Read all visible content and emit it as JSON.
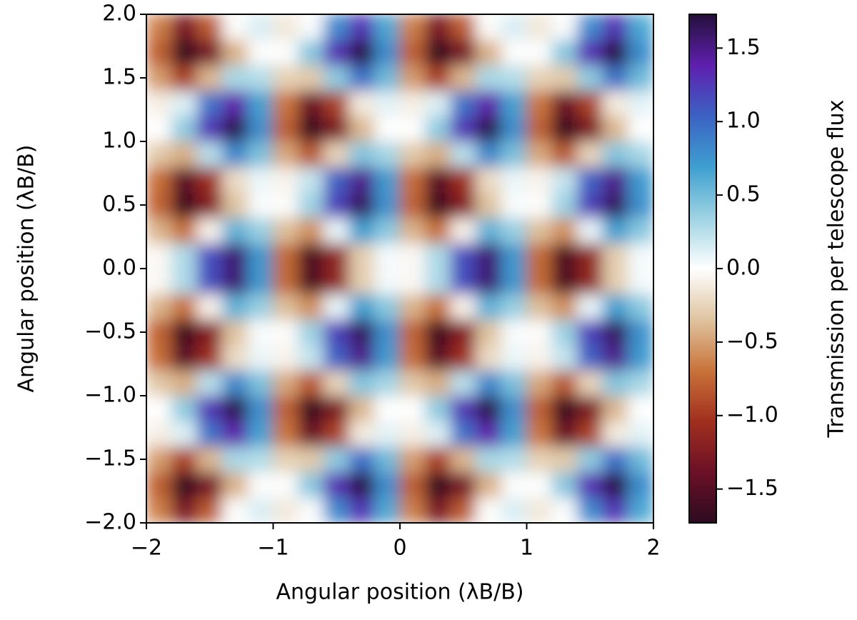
{
  "chart_data": {
    "type": "heatmap",
    "xlabel": "Angular position (λB/B)",
    "ylabel": "Angular position (λB/B)",
    "x": [
      -1.9,
      -1.7,
      -1.5,
      -1.3,
      -1.1,
      -0.9,
      -0.7,
      -0.5,
      -0.3,
      -0.1,
      0.1,
      0.3,
      0.5,
      0.7,
      0.9,
      1.1,
      1.3,
      1.5,
      1.7,
      1.9
    ],
    "y": [
      -1.9,
      -1.7,
      -1.5,
      -1.3,
      -1.1,
      -0.9,
      -0.7,
      -0.5,
      -0.3,
      -0.1,
      0.1,
      0.3,
      0.5,
      0.7,
      0.9,
      1.1,
      1.3,
      1.5,
      1.7,
      1.9
    ],
    "z": [
      [
        -0.64,
        -1.29,
        -0.81,
        -0.02,
        0.14,
        -0.14,
        0.02,
        0.81,
        1.29,
        0.64,
        -0.64,
        -1.29,
        -0.81,
        -0.02,
        0.14,
        -0.14,
        0.02,
        0.81,
        1.29,
        0.64
      ],
      [
        -0.8,
        -1.7,
        -1.31,
        -0.43,
        -0.01,
        0.01,
        0.43,
        1.31,
        1.7,
        0.8,
        -0.8,
        -1.7,
        -1.31,
        -0.43,
        -0.01,
        0.01,
        0.43,
        1.31,
        1.7,
        0.8
      ],
      [
        -0.52,
        -0.96,
        -0.4,
        0.31,
        0.27,
        -0.27,
        -0.31,
        0.4,
        0.96,
        0.52,
        -0.52,
        -0.96,
        -0.4,
        0.31,
        0.27,
        -0.27,
        -0.31,
        0.4,
        0.96,
        0.52
      ],
      [
        -0.1,
        0.12,
        0.94,
        1.39,
        0.68,
        -0.68,
        -1.39,
        -0.94,
        -0.12,
        0.1,
        -0.1,
        0.12,
        0.94,
        1.39,
        0.68,
        -0.68,
        -1.39,
        -0.94,
        -0.12,
        0.1
      ],
      [
        0,
        0.4,
        1.27,
        1.67,
        0.79,
        -0.79,
        -1.67,
        -1.27,
        -0.4,
        0,
        0,
        0.4,
        1.27,
        1.67,
        0.79,
        -0.79,
        -1.67,
        -1.27,
        -0.4,
        0
      ],
      [
        -0.32,
        -0.44,
        0.25,
        0.83,
        0.47,
        -0.47,
        -0.83,
        -0.25,
        0.44,
        0.32,
        -0.32,
        -0.44,
        0.25,
        0.83,
        0.47,
        -0.47,
        -0.83,
        -0.25,
        0.44,
        0.32
      ],
      [
        -0.72,
        -1.48,
        -1.05,
        -0.21,
        0.07,
        -0.07,
        0.21,
        1.05,
        1.48,
        0.72,
        -0.72,
        -1.48,
        -1.05,
        -0.21,
        0.07,
        -0.07,
        0.21,
        1.05,
        1.48,
        0.72
      ],
      [
        -0.77,
        -1.62,
        -1.22,
        -0.35,
        0.02,
        -0.02,
        0.35,
        1.22,
        1.62,
        0.77,
        -0.77,
        -1.62,
        -1.22,
        -0.35,
        0.02,
        -0.02,
        0.35,
        1.22,
        1.62,
        0.77
      ],
      [
        -0.42,
        -0.7,
        -0.08,
        0.57,
        0.37,
        -0.37,
        -0.57,
        0.08,
        0.7,
        0.42,
        -0.42,
        -0.7,
        -0.08,
        0.57,
        0.37,
        -0.37,
        -0.57,
        0.08,
        0.7,
        0.42
      ],
      [
        -0.04,
        0.29,
        1.14,
        1.56,
        0.74,
        -0.74,
        -1.56,
        -1.14,
        -0.29,
        0.04,
        -0.04,
        0.29,
        1.14,
        1.56,
        0.74,
        -0.74,
        -1.56,
        -1.14,
        -0.29,
        0.04
      ],
      [
        -0.04,
        0.29,
        1.14,
        1.56,
        0.74,
        -0.74,
        -1.56,
        -1.14,
        -0.29,
        0.04,
        -0.04,
        0.29,
        1.14,
        1.56,
        0.74,
        -0.74,
        -1.56,
        -1.14,
        -0.29,
        0.04
      ],
      [
        -0.42,
        -0.7,
        -0.08,
        0.57,
        0.37,
        -0.37,
        -0.57,
        0.08,
        0.7,
        0.42,
        -0.42,
        -0.7,
        -0.08,
        0.57,
        0.37,
        -0.37,
        -0.57,
        0.08,
        0.7,
        0.42
      ],
      [
        -0.77,
        -1.62,
        -1.22,
        -0.35,
        0.02,
        -0.02,
        0.35,
        1.22,
        1.62,
        0.77,
        -0.77,
        -1.62,
        -1.22,
        -0.35,
        0.02,
        -0.02,
        0.35,
        1.22,
        1.62,
        0.77
      ],
      [
        -0.72,
        -1.48,
        -1.05,
        -0.21,
        0.07,
        -0.07,
        0.21,
        1.05,
        1.48,
        0.72,
        -0.72,
        -1.48,
        -1.05,
        -0.21,
        0.07,
        -0.07,
        0.21,
        1.05,
        1.48,
        0.72
      ],
      [
        -0.32,
        -0.44,
        0.25,
        0.83,
        0.47,
        -0.47,
        -0.83,
        -0.25,
        0.44,
        0.32,
        -0.32,
        -0.44,
        0.25,
        0.83,
        0.47,
        -0.47,
        -0.83,
        -0.25,
        0.44,
        0.32
      ],
      [
        0,
        0.4,
        1.27,
        1.67,
        0.79,
        -0.79,
        -1.67,
        -1.27,
        -0.4,
        0,
        0,
        0.4,
        1.27,
        1.67,
        0.79,
        -0.79,
        -1.67,
        -1.27,
        -0.4,
        0
      ],
      [
        -0.1,
        0.12,
        0.94,
        1.39,
        0.68,
        -0.68,
        -1.39,
        -0.94,
        -0.12,
        0.1,
        -0.1,
        0.12,
        0.94,
        1.39,
        0.68,
        -0.68,
        -1.39,
        -0.94,
        -0.12,
        0.1
      ],
      [
        -0.52,
        -0.96,
        -0.4,
        0.31,
        0.27,
        -0.27,
        -0.31,
        0.4,
        0.96,
        0.52,
        -0.52,
        -0.96,
        -0.4,
        0.31,
        0.27,
        -0.27,
        -0.31,
        0.4,
        0.96,
        0.52
      ],
      [
        -0.8,
        -1.7,
        -1.31,
        -0.43,
        -0.01,
        0.01,
        0.43,
        1.31,
        1.7,
        0.8,
        -0.8,
        -1.7,
        -1.31,
        -0.43,
        -0.01,
        0.01,
        0.43,
        1.31,
        1.7,
        0.8
      ],
      [
        -0.64,
        -1.29,
        -0.81,
        -0.02,
        0.14,
        -0.14,
        0.02,
        0.81,
        1.29,
        0.64,
        -0.64,
        -1.29,
        -0.81,
        -0.02,
        0.14,
        -0.14,
        0.02,
        0.81,
        1.29,
        0.64
      ]
    ],
    "xlim": [
      -2,
      2
    ],
    "ylim": [
      -2,
      2
    ],
    "xticks": [
      {
        "value": -2,
        "label": "−2"
      },
      {
        "value": -1,
        "label": "−1"
      },
      0,
      1,
      2
    ],
    "yticks": [
      {
        "value": -2,
        "label": "−2.0"
      },
      {
        "value": -1.5,
        "label": "−1.5"
      },
      {
        "value": -1,
        "label": "−1.0"
      },
      {
        "value": -0.5,
        "label": "−0.5"
      },
      {
        "value": 0,
        "label": "0.0"
      },
      {
        "value": 0.5,
        "label": "0.5"
      },
      {
        "value": 1,
        "label": "1.0"
      },
      {
        "value": 1.5,
        "label": "1.5"
      },
      {
        "value": 2,
        "label": "2.0"
      }
    ],
    "colormap": [
      "#2d0b20",
      "#6b1027",
      "#a12f1e",
      "#c9733a",
      "#dfc4a0",
      "#ffffff",
      "#9ed3e3",
      "#3e9fd0",
      "#3b62c3",
      "#5f1fae",
      "#24103a"
    ],
    "colorbar": {
      "label": "Transmission per telescope flux",
      "lim": [
        -1.73,
        1.73
      ],
      "ticks": [
        {
          "value": -1.5,
          "label": "−1.5"
        },
        {
          "value": -1,
          "label": "−1.0"
        },
        {
          "value": -0.5,
          "label": "−0.5"
        },
        {
          "value": 0,
          "label": "0.0"
        },
        {
          "value": 0.5,
          "label": "0.5"
        },
        {
          "value": 1,
          "label": "1.0"
        },
        {
          "value": 1.5,
          "label": "1.5"
        }
      ]
    }
  }
}
